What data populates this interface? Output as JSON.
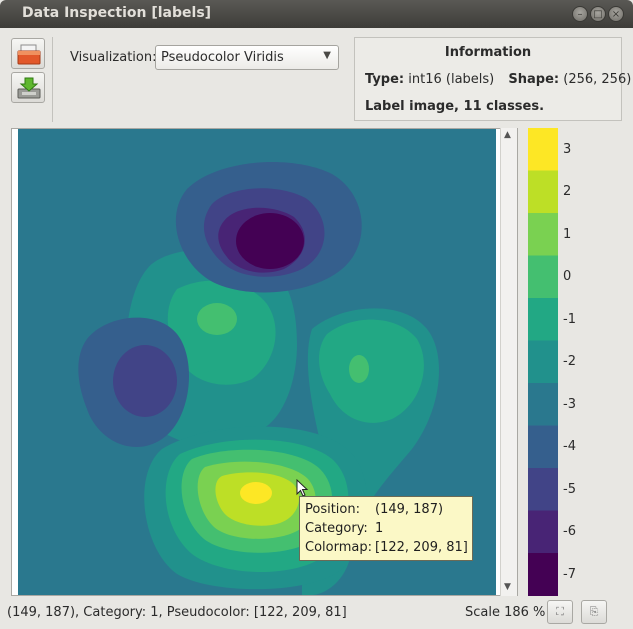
{
  "window": {
    "title": "Data Inspection [labels]",
    "controls": [
      "minimize-icon",
      "maximize-icon",
      "close-icon"
    ]
  },
  "toolbar": {
    "buttons": [
      "open-file-icon",
      "save-download-icon"
    ]
  },
  "visualization": {
    "label": "Visualization:",
    "selected": "Pseudocolor Viridis"
  },
  "information": {
    "title": "Information",
    "type_label": "Type:",
    "type_value": "int16 (labels)",
    "shape_label": "Shape:",
    "shape_value": "(256, 256)",
    "description": "Label image, 11 classes."
  },
  "colorbar": {
    "labels": [
      "3",
      "2",
      "1",
      "0",
      "-1",
      "-2",
      "-3",
      "-4",
      "-5",
      "-6",
      "-7"
    ],
    "colors": [
      "#fde725",
      "#bddf26",
      "#7ad151",
      "#44bf70",
      "#22a884",
      "#21918c",
      "#2a788e",
      "#355f8d",
      "#414487",
      "#482475",
      "#440154"
    ]
  },
  "tooltip": {
    "position_label": "Position:",
    "position_value": "(149, 187)",
    "category_label": "Category:",
    "category_value": "1",
    "colormap_label": "Colormap:",
    "colormap_value": "[122, 209, 81]"
  },
  "status": {
    "text": "(149, 187), Category: 1, Pseudocolor: [122, 209, 81]",
    "scale": "Scale 186 %"
  }
}
